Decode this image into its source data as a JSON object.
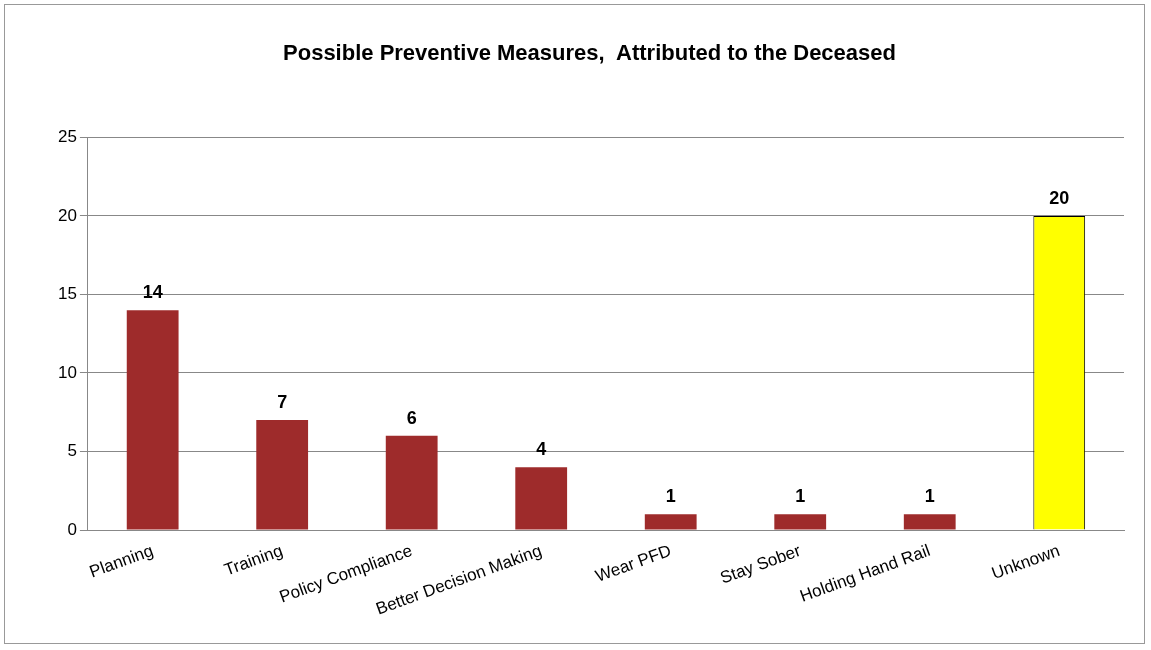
{
  "chart_data": {
    "type": "bar",
    "title": "Possible Preventive Measures,  Attributed to the Deceased",
    "categories": [
      "Planning",
      "Training",
      "Policy Compliance",
      "Better Decision Making",
      "Wear PFD",
      "Stay Sober",
      "Holding Hand Rail",
      "Unknown"
    ],
    "values": [
      14,
      7,
      6,
      4,
      1,
      1,
      1,
      20
    ],
    "colors": [
      "#9e2b2b",
      "#9e2b2b",
      "#9e2b2b",
      "#9e2b2b",
      "#9e2b2b",
      "#9e2b2b",
      "#9e2b2b",
      "#ffff00"
    ],
    "ylim": [
      0,
      25
    ],
    "yticks": [
      0,
      5,
      10,
      15,
      20,
      25
    ],
    "grid": "y",
    "data_labels": true
  }
}
